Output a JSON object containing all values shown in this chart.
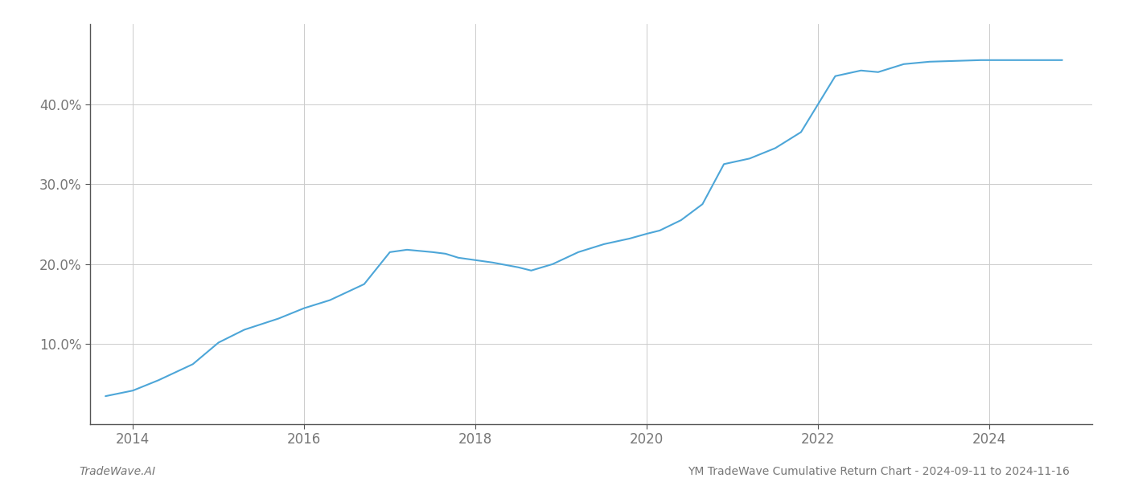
{
  "x_years": [
    2013.68,
    2014.0,
    2014.3,
    2014.7,
    2015.0,
    2015.3,
    2015.7,
    2016.0,
    2016.3,
    2016.7,
    2017.0,
    2017.2,
    2017.5,
    2017.65,
    2017.8,
    2018.0,
    2018.2,
    2018.5,
    2018.65,
    2018.9,
    2019.2,
    2019.5,
    2019.8,
    2020.0,
    2020.15,
    2020.4,
    2020.65,
    2020.9,
    2021.2,
    2021.5,
    2021.8,
    2022.0,
    2022.2,
    2022.5,
    2022.7,
    2023.0,
    2023.3,
    2023.6,
    2023.9,
    2024.1,
    2024.5,
    2024.85
  ],
  "y_values": [
    3.5,
    4.2,
    5.5,
    7.5,
    10.2,
    11.8,
    13.2,
    14.5,
    15.5,
    17.5,
    21.5,
    21.8,
    21.5,
    21.3,
    20.8,
    20.5,
    20.2,
    19.6,
    19.2,
    20.0,
    21.5,
    22.5,
    23.2,
    23.8,
    24.2,
    25.5,
    27.5,
    32.5,
    33.2,
    34.5,
    36.5,
    40.0,
    43.5,
    44.2,
    44.0,
    45.0,
    45.3,
    45.4,
    45.5,
    45.5,
    45.5,
    45.5
  ],
  "line_color": "#4da6d8",
  "line_width": 1.5,
  "xlim": [
    2013.5,
    2025.2
  ],
  "ylim": [
    0,
    50
  ],
  "yticks": [
    10.0,
    20.0,
    30.0,
    40.0
  ],
  "ytick_labels": [
    "10.0%",
    "20.0%",
    "30.0%",
    "40.0%"
  ],
  "xticks": [
    2014,
    2016,
    2018,
    2020,
    2022,
    2024
  ],
  "xtick_labels": [
    "2014",
    "2016",
    "2018",
    "2020",
    "2022",
    "2024"
  ],
  "grid_color": "#cccccc",
  "background_color": "#ffffff",
  "footer_left": "TradeWave.AI",
  "footer_right": "YM TradeWave Cumulative Return Chart - 2024-09-11 to 2024-11-16",
  "footer_fontsize": 10,
  "tick_fontsize": 12,
  "spine_color": "#555555"
}
